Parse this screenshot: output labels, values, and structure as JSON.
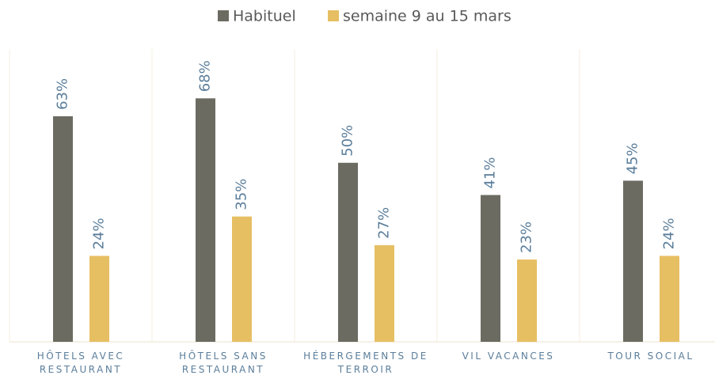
{
  "chart_data": {
    "type": "bar",
    "categories": [
      "HÔTELS AVEC RESTAURANT",
      "HÔTELS SANS RESTAURANT",
      "HÉBERGEMENTS DE TERROIR",
      "VIL VACANCES",
      "TOUR SOCIAL"
    ],
    "series": [
      {
        "name": "Habituel",
        "color": "#6b6b61",
        "values": [
          63,
          68,
          50,
          41,
          45
        ],
        "value_labels": [
          "63%",
          "68%",
          "50%",
          "41%",
          "45%"
        ]
      },
      {
        "name": "semaine 9 au 15 mars",
        "color": "#e6bf63",
        "values": [
          24,
          35,
          27,
          23,
          24
        ],
        "value_labels": [
          "24%",
          "35%",
          "27%",
          "23%",
          "24%"
        ]
      }
    ],
    "ylim": [
      0,
      80
    ],
    "legend": "top"
  }
}
